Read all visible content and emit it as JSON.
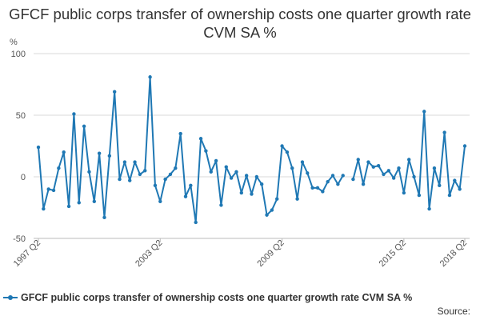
{
  "chart_data": {
    "type": "line",
    "title": "GFCF public corps transfer of ownership costs one quarter growth rate CVM SA %",
    "ylabel": "%",
    "xlabel": "",
    "ylim": [
      -50,
      100
    ],
    "yticks": [
      -50,
      0,
      50,
      100
    ],
    "x_start": "1997 Q2",
    "x_end": "2018 Q2",
    "xticks": [
      "1997 Q2",
      "2003 Q2",
      "2009 Q2",
      "2015 Q2",
      "2018 Q2"
    ],
    "grid": true,
    "legend_position": "bottom-left",
    "line_color": "#1f78b4",
    "series": [
      {
        "name": "GFCF public corps transfer of ownership costs one quarter growth rate CVM SA %",
        "values": [
          24,
          -26,
          -10,
          -11,
          7,
          20,
          -24,
          51,
          -21,
          41,
          4,
          -20,
          19,
          -33,
          17,
          69,
          -2,
          12,
          -3,
          12,
          2,
          5,
          81,
          -7,
          -20,
          -2,
          2,
          7,
          35,
          -16,
          -7,
          -37,
          31,
          21,
          4,
          13,
          -23,
          8,
          -1,
          4,
          -13,
          1,
          -14,
          0,
          -6,
          -31,
          -27,
          -18,
          25,
          20,
          7,
          -18,
          12,
          3,
          -9,
          -9,
          -12,
          -4,
          1,
          -6,
          1,
          null,
          -2,
          14,
          -6,
          12,
          8,
          9,
          2,
          5,
          -1,
          7,
          -13,
          14,
          0,
          -15,
          53,
          -26,
          7,
          -7,
          36,
          -15,
          -3,
          -10,
          25
        ]
      }
    ]
  },
  "legend": {
    "label": "GFCF public corps transfer of ownership costs one quarter growth rate CVM SA %"
  },
  "source": {
    "label": "Source:"
  }
}
